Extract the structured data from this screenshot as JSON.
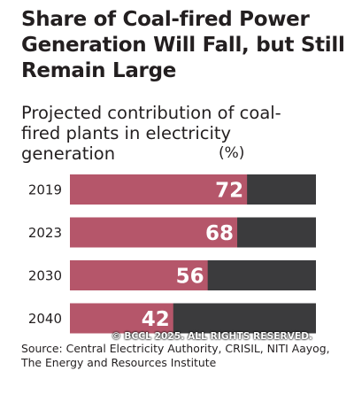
{
  "title": "Share of Coal-fired Power Generation Will Fall, but Still Remain Large",
  "subtitle": "Projected contribution of coal-fired plants in electricity generation",
  "unit": "(%)",
  "source": "Source: Central Electricity Authority, CRISIL, NITI Aayog, The Energy and Resources Institute",
  "copyright": "© BCCL 2025. ALL RIGHTS RESERVED.",
  "colors": {
    "coal_share": "#b5566a",
    "remainder": "#3b3b3d",
    "value_label": "#ffffff"
  },
  "chart_data": {
    "type": "bar",
    "orientation": "horizontal",
    "stacked_to": 100,
    "categories": [
      "2019",
      "2023",
      "2030",
      "2040"
    ],
    "values": [
      72,
      68,
      56,
      42
    ],
    "xlim": [
      0,
      100
    ],
    "grid": false
  }
}
